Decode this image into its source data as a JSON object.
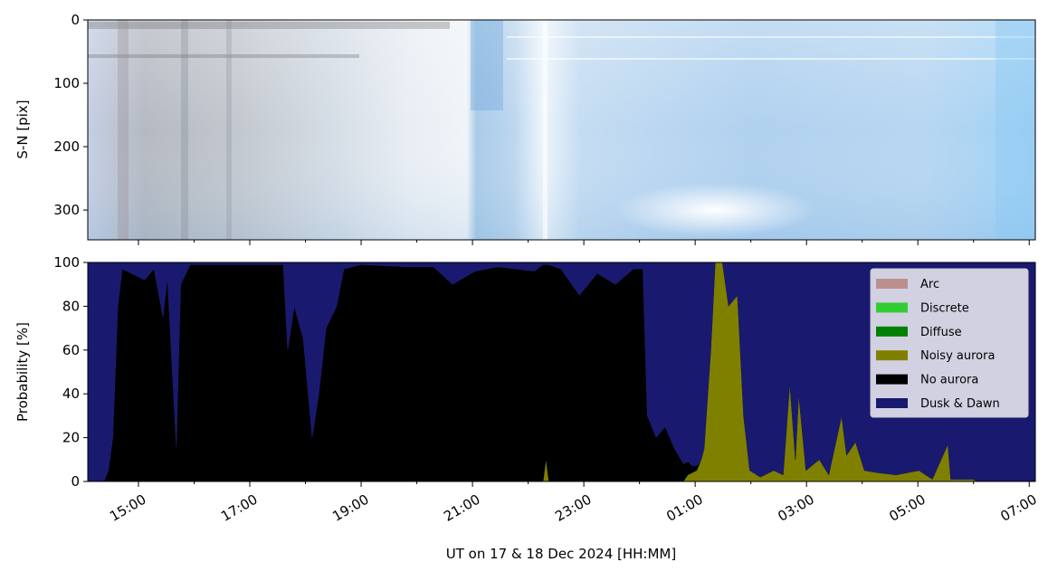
{
  "chart_data": [
    {
      "type": "image",
      "ylabel": "S-N [pix]",
      "ylim": [
        347,
        0
      ],
      "yticks": [
        0,
        100,
        200,
        300
      ]
    },
    {
      "type": "stacked_area",
      "ylabel": "Probability [%]",
      "xlabel": "UT on 17 & 18 Dec 2024 [HH:MM]",
      "xlim": [
        14.09,
        31.11
      ],
      "xticks": [
        {
          "value": 15,
          "label": "15:00"
        },
        {
          "value": 17,
          "label": "17:00"
        },
        {
          "value": 19,
          "label": "19:00"
        },
        {
          "value": 21,
          "label": "21:00"
        },
        {
          "value": 23,
          "label": "23:00"
        },
        {
          "value": 25,
          "label": "01:00"
        },
        {
          "value": 27,
          "label": "03:00"
        },
        {
          "value": 29,
          "label": "05:00"
        },
        {
          "value": 31,
          "label": "07:00"
        }
      ],
      "xminorticks": [
        16,
        18,
        20,
        22,
        24,
        26,
        28,
        30
      ],
      "ylim": [
        0,
        100
      ],
      "yticks": [
        0,
        20,
        40,
        60,
        80,
        100
      ],
      "legend": "upper right",
      "x": [
        14.09,
        14.38,
        14.46,
        14.54,
        14.63,
        14.71,
        14.87,
        15.11,
        15.28,
        15.44,
        15.52,
        15.68,
        15.76,
        15.93,
        16.41,
        17.05,
        17.6,
        17.68,
        17.8,
        17.96,
        18.12,
        18.24,
        18.37,
        18.56,
        18.69,
        19.0,
        19.81,
        20.3,
        20.64,
        21.05,
        21.46,
        22.11,
        22.27,
        22.32,
        22.37,
        22.59,
        22.92,
        23.24,
        23.57,
        23.89,
        24.06,
        24.14,
        24.3,
        24.46,
        24.63,
        24.79,
        24.87,
        24.95,
        25.03,
        25.11,
        25.16,
        25.28,
        25.36,
        25.49,
        25.6,
        25.76,
        25.87,
        25.98,
        26.17,
        26.41,
        26.58,
        26.7,
        26.8,
        26.86,
        26.99,
        27.23,
        27.4,
        27.63,
        27.72,
        27.88,
        28.04,
        28.28,
        28.61,
        29.02,
        29.26,
        29.54,
        29.59,
        29.99,
        30.07,
        31.11
      ],
      "series": [
        {
          "name": "Arc",
          "color": "#bc8f8f",
          "values": [
            0,
            0,
            0,
            0,
            0,
            0,
            0,
            0,
            0,
            0,
            0,
            0,
            0,
            0,
            0,
            0,
            0,
            0,
            0,
            0,
            0,
            0,
            0,
            0,
            0,
            0,
            0,
            0,
            0,
            0,
            0,
            0,
            0,
            0,
            0,
            0,
            0,
            0,
            0,
            0,
            0,
            0,
            0,
            0,
            0,
            0,
            0,
            0,
            0,
            0,
            0,
            0,
            0,
            0,
            0,
            0,
            0,
            0,
            0,
            0,
            0,
            0,
            0,
            0,
            0,
            0,
            0,
            0,
            0,
            0,
            0,
            0,
            0,
            0,
            0,
            0,
            0,
            0,
            0,
            0
          ]
        },
        {
          "name": "Discrete",
          "color": "#32cd32",
          "values": [
            0,
            0,
            0,
            0,
            0,
            0,
            0,
            0,
            0,
            0,
            0,
            0,
            0,
            0,
            0,
            0,
            0,
            0,
            0,
            0,
            0,
            0,
            0,
            0,
            0,
            0,
            0,
            0,
            0,
            0,
            0,
            0,
            0,
            0,
            0,
            0,
            0,
            0,
            0,
            0,
            0,
            0,
            0,
            0,
            0,
            0,
            0,
            0,
            0,
            0,
            0,
            0,
            0,
            0,
            0,
            0,
            0,
            0,
            0,
            0,
            0,
            0,
            0,
            0,
            0,
            0,
            0,
            0,
            0,
            0,
            0,
            0,
            0,
            0,
            0,
            0,
            0,
            0,
            0,
            0
          ]
        },
        {
          "name": "Diffuse",
          "color": "#008000",
          "values": [
            0,
            0,
            0,
            0,
            0,
            0,
            0,
            0,
            0,
            0,
            0,
            0,
            0,
            0,
            0,
            0,
            0,
            0,
            0,
            0,
            0,
            0,
            0,
            0,
            0,
            0,
            0,
            0,
            0,
            0,
            0,
            0,
            0,
            0,
            0,
            0,
            0,
            0,
            0,
            0,
            0,
            0,
            0,
            0,
            0,
            0,
            0,
            0,
            0,
            0,
            0,
            0,
            0,
            0,
            0,
            0,
            0,
            0,
            0,
            0,
            0,
            0,
            0,
            0,
            0,
            0,
            0,
            0,
            0,
            0,
            0,
            0,
            0,
            0,
            0,
            0,
            0,
            0,
            0,
            0
          ]
        },
        {
          "name": "Noisy aurora",
          "color": "#808000",
          "values": [
            0,
            0,
            0,
            0,
            0,
            0,
            0,
            0,
            0,
            0,
            0,
            0,
            0,
            0,
            0,
            0,
            0,
            0,
            0,
            0,
            0,
            0,
            0,
            0,
            0,
            0,
            0,
            0,
            0,
            0,
            0,
            0,
            0,
            10,
            0,
            0,
            0,
            0,
            0,
            0,
            0,
            0,
            0,
            0,
            0,
            0,
            3,
            4,
            5,
            10,
            15,
            60,
            100,
            100,
            80,
            85,
            30,
            5,
            2,
            5,
            3,
            45,
            10,
            40,
            5,
            10,
            3,
            30,
            12,
            18,
            5,
            4,
            3,
            5,
            1,
            17,
            1,
            1,
            0,
            0
          ]
        },
        {
          "name": "No aurora",
          "color": "#000000",
          "values": [
            0,
            0,
            5,
            20,
            80,
            97,
            95,
            92,
            97,
            75,
            93,
            15,
            90,
            99,
            99,
            99,
            99,
            60,
            80,
            65,
            20,
            40,
            70,
            80,
            97,
            99,
            98,
            98,
            90,
            96,
            98,
            96,
            99,
            89,
            99,
            97,
            85,
            95,
            90,
            97,
            97,
            30,
            20,
            25,
            15,
            8,
            6,
            3,
            2,
            0,
            0,
            0,
            0,
            0,
            0,
            0,
            0,
            0,
            0,
            0,
            0,
            0,
            0,
            0,
            0,
            0,
            0,
            0,
            0,
            0,
            0,
            0,
            0,
            0,
            0,
            0,
            0,
            0,
            0,
            0
          ]
        },
        {
          "name": "Dusk & Dawn",
          "color": "#191970",
          "values": [
            100,
            100,
            95,
            80,
            20,
            3,
            5,
            8,
            3,
            25,
            7,
            85,
            10,
            1,
            1,
            1,
            1,
            40,
            20,
            35,
            80,
            60,
            30,
            20,
            3,
            1,
            2,
            2,
            10,
            4,
            2,
            4,
            1,
            1,
            1,
            3,
            15,
            5,
            10,
            3,
            3,
            70,
            80,
            75,
            85,
            92,
            91,
            93,
            93,
            90,
            85,
            40,
            0,
            0,
            20,
            15,
            70,
            95,
            98,
            95,
            97,
            55,
            90,
            60,
            95,
            90,
            97,
            70,
            88,
            82,
            95,
            96,
            97,
            95,
            99,
            83,
            99,
            99,
            100,
            100
          ]
        }
      ]
    }
  ]
}
